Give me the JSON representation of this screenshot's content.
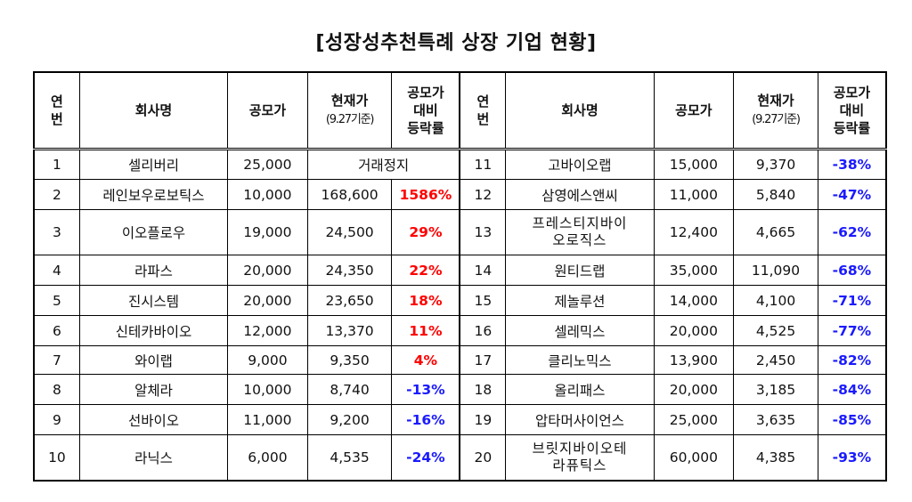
{
  "title": "[성장성추천특례 상장 기업 현황]",
  "headers": {
    "no": "연\n번",
    "company": "회사명",
    "ipo": "공모가",
    "current": "현재가",
    "current_sub": "(9.27기준)",
    "change": "공모가\n대비\n등락률"
  },
  "left_rows": [
    {
      "no": "1",
      "name": "셀리버리",
      "ipo": "25,000",
      "current": "거래정지",
      "pct": ""
    },
    {
      "no": "2",
      "name": "레인보우로보틱스",
      "ipo": "10,000",
      "current": "168,600",
      "pct": "1586%"
    },
    {
      "no": "3",
      "name": "이오플로우",
      "ipo": "19,000",
      "current": "24,500",
      "pct": "29%"
    },
    {
      "no": "4",
      "name": "라파스",
      "ipo": "20,000",
      "current": "24,350",
      "pct": "22%"
    },
    {
      "no": "5",
      "name": "진시스템",
      "ipo": "20,000",
      "current": "23,650",
      "pct": "18%"
    },
    {
      "no": "6",
      "name": "신테카바이오",
      "ipo": "12,000",
      "current": "13,370",
      "pct": "11%"
    },
    {
      "no": "7",
      "name": "와이랩",
      "ipo": "9,000",
      "current": "9,350",
      "pct": "4%"
    },
    {
      "no": "8",
      "name": "알체라",
      "ipo": "10,000",
      "current": "8,740",
      "pct": "-13%"
    },
    {
      "no": "9",
      "name": "선바이오",
      "ipo": "11,000",
      "current": "9,200",
      "pct": "-16%"
    },
    {
      "no": "10",
      "name": "라닉스",
      "ipo": "6,000",
      "current": "4,535",
      "pct": "-24%"
    }
  ],
  "right_rows": [
    {
      "no": "11",
      "name": "고바이오랩",
      "ipo": "15,000",
      "current": "9,370",
      "pct": "-38%"
    },
    {
      "no": "12",
      "name": "삼영에스앤씨",
      "ipo": "11,000",
      "current": "5,840",
      "pct": "-47%"
    },
    {
      "no": "13",
      "name": "프레스티지바이\n오로직스",
      "ipo": "12,400",
      "current": "4,665",
      "pct": "-62%"
    },
    {
      "no": "14",
      "name": "원티드랩",
      "ipo": "35,000",
      "current": "11,090",
      "pct": "-68%"
    },
    {
      "no": "15",
      "name": "제놀루션",
      "ipo": "14,000",
      "current": "4,100",
      "pct": "-71%"
    },
    {
      "no": "16",
      "name": "셀레믹스",
      "ipo": "20,000",
      "current": "4,525",
      "pct": "-77%"
    },
    {
      "no": "17",
      "name": "클리노믹스",
      "ipo": "13,900",
      "current": "2,450",
      "pct": "-82%"
    },
    {
      "no": "18",
      "name": "올리패스",
      "ipo": "20,000",
      "current": "3,185",
      "pct": "-84%"
    },
    {
      "no": "19",
      "name": "압타머사이언스",
      "ipo": "25,000",
      "current": "3,635",
      "pct": "-85%"
    },
    {
      "no": "20",
      "name": "브릿지바이오테\n라퓨틱스",
      "ipo": "60,000",
      "current": "4,385",
      "pct": "-93%"
    }
  ],
  "colors": {
    "positive": "#ff0000",
    "negative": "#1a1aff"
  }
}
